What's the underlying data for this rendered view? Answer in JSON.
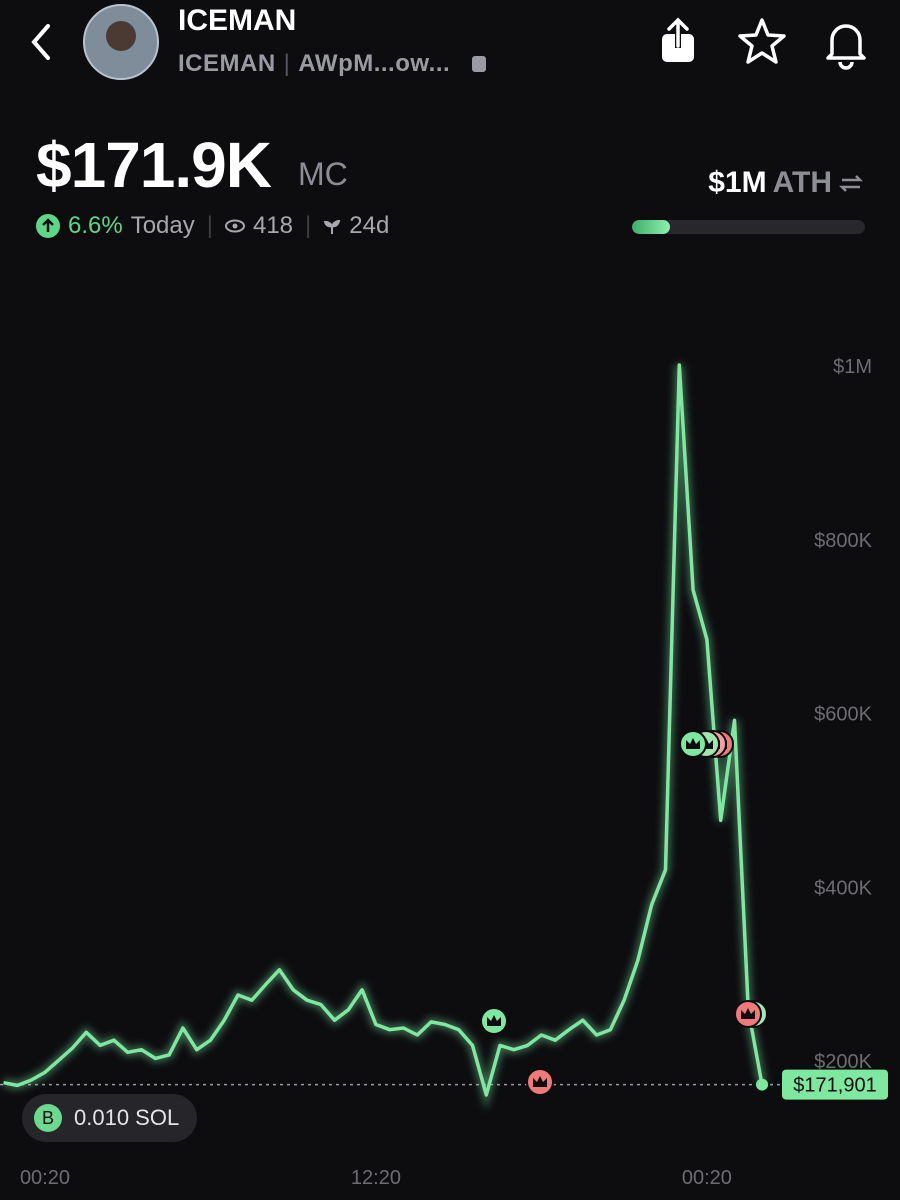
{
  "header": {
    "name": "ICEMAN",
    "ticker": "ICEMAN",
    "address": "AWpM...ow...",
    "market_cap": "$171.9K",
    "market_cap_unit": "MC",
    "change": "6.6%",
    "change_period": "Today",
    "watchers": "418",
    "age": "24d",
    "ath": "$1M",
    "ath_label": "ATH"
  },
  "position": {
    "badge": "B",
    "amount": "0.010 SOL"
  },
  "chart_data": {
    "type": "line",
    "color": "#7ee8a0",
    "categories": [
      null,
      null,
      null,
      "00:20",
      null,
      null,
      null,
      null,
      null,
      null,
      null,
      null,
      null,
      null,
      null,
      null,
      null,
      null,
      null,
      null,
      null,
      null,
      null,
      null,
      null,
      null,
      null,
      "12:20",
      null,
      null,
      null,
      null,
      null,
      null,
      null,
      null,
      null,
      null,
      null,
      null,
      null,
      null,
      null,
      null,
      null,
      null,
      null,
      null,
      null,
      null,
      null,
      "00:20",
      null,
      null,
      null,
      null
    ],
    "values": [
      174000,
      171000,
      177000,
      186000,
      200000,
      214000,
      232000,
      217000,
      223000,
      209000,
      212000,
      202000,
      206000,
      237000,
      212000,
      223000,
      246000,
      275000,
      269000,
      287000,
      304000,
      281000,
      269000,
      264000,
      246000,
      258000,
      281000,
      241000,
      235000,
      237000,
      229000,
      244000,
      241000,
      235000,
      217000,
      160000,
      217000,
      212000,
      217000,
      229000,
      223000,
      235000,
      246000,
      229000,
      235000,
      269000,
      315000,
      379000,
      419000,
      1000000,
      741000,
      684000,
      476000,
      591000,
      258000,
      171901
    ],
    "ylim": [
      150000,
      1030000
    ],
    "yticks": [
      {
        "value": 200000,
        "label": "$200K"
      },
      {
        "value": 400000,
        "label": "$400K"
      },
      {
        "value": 600000,
        "label": "$600K"
      },
      {
        "value": 800000,
        "label": "$800K"
      },
      {
        "value": 1000000,
        "label": "$1M"
      }
    ],
    "current": {
      "value": 171901,
      "label": "$171,901"
    }
  }
}
